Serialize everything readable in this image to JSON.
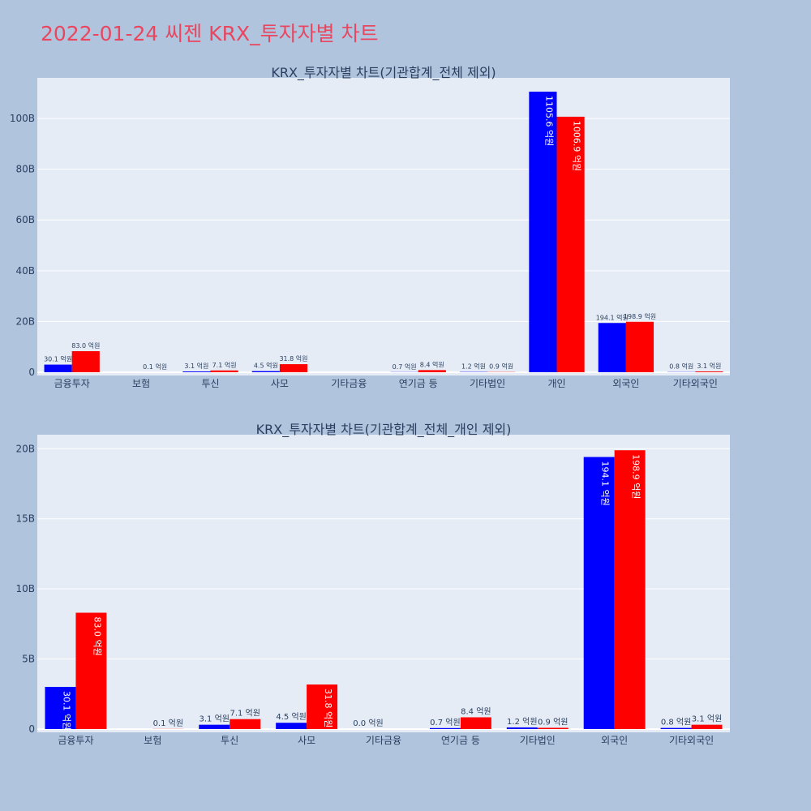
{
  "title": "2022-01-24 씨젠 KRX_투자자별 차트",
  "colors": {
    "buy": "#0000ff",
    "sell": "#ff0000",
    "plot_bg": "#e5ecf6",
    "page_bg": "#b0c4de",
    "title": "#e8475f"
  },
  "chart_data": [
    {
      "type": "bar",
      "title": "KRX_투자자별 차트(기관합계_전체 제외)",
      "categories": [
        "금융투자",
        "보험",
        "투신",
        "사모",
        "기타금융",
        "연기금 등",
        "기타법인",
        "개인",
        "외국인",
        "기타외국인"
      ],
      "ylim": [
        0,
        116
      ],
      "yticks": [
        0,
        20,
        40,
        60,
        80,
        100
      ],
      "ytick_labels": [
        "0",
        "20B",
        "40B",
        "60B",
        "80B",
        "100B"
      ],
      "grid": true,
      "series": [
        {
          "values": [
            3.01,
            0,
            0.31,
            0.45,
            0,
            0.07,
            0.12,
            110.56,
            19.41,
            0.08
          ],
          "labels": [
            "30.1 억원",
            "",
            "3.1 억원",
            "4.5 억원",
            "",
            "0.7 억원",
            "1.2 억원",
            "1105.6 억원",
            "194.1 억원",
            "0.8 억원"
          ]
        },
        {
          "values": [
            8.3,
            0.01,
            0.71,
            3.18,
            0,
            0.84,
            0.09,
            100.69,
            19.89,
            0.31
          ],
          "labels": [
            "83.0 억원",
            "0.1 억원",
            "7.1 억원",
            "31.8 억원",
            "",
            "8.4 억원",
            "0.9 억원",
            "1006.9 억원",
            "198.9 억원",
            "3.1 억원"
          ]
        }
      ]
    },
    {
      "type": "bar",
      "title": "KRX_투자자별 차트(기관합계_전체_개인 제외)",
      "categories": [
        "금융투자",
        "보험",
        "투신",
        "사모",
        "기타금융",
        "연기금 등",
        "기타법인",
        "외국인",
        "기타외국인"
      ],
      "ylim": [
        0,
        21
      ],
      "yticks": [
        0,
        5,
        10,
        15,
        20
      ],
      "ytick_labels": [
        "0",
        "5B",
        "10B",
        "15B",
        "20B"
      ],
      "grid": true,
      "series": [
        {
          "values": [
            3.01,
            0,
            0.31,
            0.45,
            0,
            0.07,
            0.12,
            19.41,
            0.08
          ],
          "labels": [
            "30.1 억원",
            "",
            "3.1 억원",
            "4.5 억원",
            "0.0 억원",
            "0.7 억원",
            "1.2 억원",
            "194.1 억원",
            "0.8 억원"
          ]
        },
        {
          "values": [
            8.3,
            0.01,
            0.71,
            3.18,
            0,
            0.84,
            0.09,
            19.89,
            0.31
          ],
          "labels": [
            "83.0 억원",
            "0.1 억원",
            "7.1 억원",
            "31.8 억원",
            "",
            "8.4 억원",
            "0.9 억원",
            "198.9 억원",
            "3.1 억원"
          ]
        }
      ]
    }
  ]
}
